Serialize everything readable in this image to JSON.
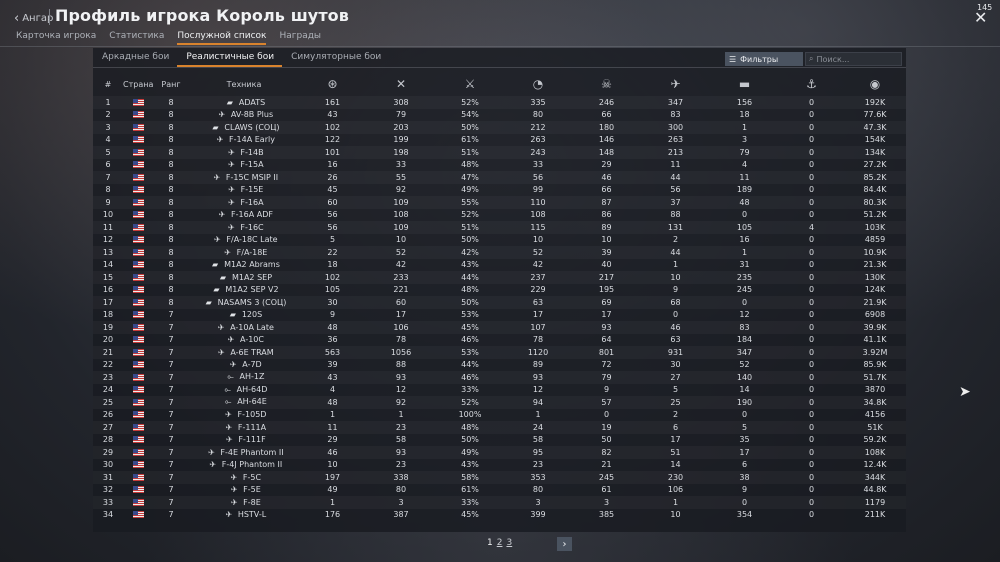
{
  "header": {
    "back_label": "Ангар",
    "title": "Профиль игрока Король шутов",
    "counter": "145",
    "tabs": [
      {
        "label": "Карточка игрока",
        "active": false
      },
      {
        "label": "Статистика",
        "active": false
      },
      {
        "label": "Послужной список",
        "active": true
      },
      {
        "label": "Награды",
        "active": false
      }
    ]
  },
  "modes": [
    {
      "label": "Аркадные бои",
      "active": false
    },
    {
      "label": "Реалистичные бои",
      "active": true
    },
    {
      "label": "Симуляторные бои",
      "active": false
    }
  ],
  "filter_label": "Фильтры",
  "search_placeholder": "Поиск...",
  "columns": {
    "num": "#",
    "country": "Страна",
    "rank": "Ранг",
    "vehicle": "Техника",
    "stat_icons": [
      "ground-kills-icon",
      "air-kills-icon",
      "win-rate-icon",
      "missions-icon",
      "deaths-icon",
      "air-targets-icon",
      "ground-targets-icon",
      "naval-targets-icon",
      "research-points-icon"
    ]
  },
  "accent_color": "#d9832d",
  "rank_color": "#e6c36b",
  "rows": [
    {
      "n": "1",
      "rank": "8",
      "icon": "tank",
      "name": "ADATS",
      "c1": "161",
      "c2": "308",
      "c3": "52%",
      "c4": "335",
      "c5": "246",
      "c6": "347",
      "c7": "156",
      "c8": "0",
      "c9": "192K"
    },
    {
      "n": "2",
      "rank": "8",
      "icon": "jet",
      "name": "AV-8B Plus",
      "c1": "43",
      "c2": "79",
      "c3": "54%",
      "c4": "80",
      "c5": "66",
      "c6": "83",
      "c7": "18",
      "c8": "0",
      "c9": "77.6K"
    },
    {
      "n": "3",
      "rank": "8",
      "icon": "tank",
      "name": "CLAWS (СОЦ)",
      "c1": "102",
      "c2": "203",
      "c3": "50%",
      "c4": "212",
      "c5": "180",
      "c6": "300",
      "c7": "1",
      "c8": "0",
      "c9": "47.3K"
    },
    {
      "n": "4",
      "rank": "8",
      "icon": "jet",
      "name": "F-14A Early",
      "c1": "122",
      "c2": "199",
      "c3": "61%",
      "c4": "263",
      "c5": "146",
      "c6": "263",
      "c7": "3",
      "c8": "0",
      "c9": "154K"
    },
    {
      "n": "5",
      "rank": "8",
      "icon": "jet",
      "name": "F-14B",
      "c1": "101",
      "c2": "198",
      "c3": "51%",
      "c4": "243",
      "c5": "148",
      "c6": "213",
      "c7": "79",
      "c8": "0",
      "c9": "134K"
    },
    {
      "n": "6",
      "rank": "8",
      "icon": "jet",
      "name": "F-15A",
      "c1": "16",
      "c2": "33",
      "c3": "48%",
      "c4": "33",
      "c5": "29",
      "c6": "11",
      "c7": "4",
      "c8": "0",
      "c9": "27.2K"
    },
    {
      "n": "7",
      "rank": "8",
      "icon": "jet",
      "name": "F-15C MSIP II",
      "c1": "26",
      "c2": "55",
      "c3": "47%",
      "c4": "56",
      "c5": "46",
      "c6": "44",
      "c7": "11",
      "c8": "0",
      "c9": "85.2K"
    },
    {
      "n": "8",
      "rank": "8",
      "icon": "jet",
      "name": "F-15E",
      "c1": "45",
      "c2": "92",
      "c3": "49%",
      "c4": "99",
      "c5": "66",
      "c6": "56",
      "c7": "189",
      "c8": "0",
      "c9": "84.4K"
    },
    {
      "n": "9",
      "rank": "8",
      "icon": "jet",
      "name": "F-16A",
      "c1": "60",
      "c2": "109",
      "c3": "55%",
      "c4": "110",
      "c5": "87",
      "c6": "37",
      "c7": "48",
      "c8": "0",
      "c9": "80.3K"
    },
    {
      "n": "10",
      "rank": "8",
      "icon": "jet",
      "name": "F-16A ADF",
      "c1": "56",
      "c2": "108",
      "c3": "52%",
      "c4": "108",
      "c5": "86",
      "c6": "88",
      "c7": "0",
      "c8": "0",
      "c9": "51.2K"
    },
    {
      "n": "11",
      "rank": "8",
      "icon": "jet",
      "name": "F-16C",
      "c1": "56",
      "c2": "109",
      "c3": "51%",
      "c4": "115",
      "c5": "89",
      "c6": "131",
      "c7": "105",
      "c8": "4",
      "c9": "103K"
    },
    {
      "n": "12",
      "rank": "8",
      "icon": "jet",
      "name": "F/A-18C Late",
      "c1": "5",
      "c2": "10",
      "c3": "50%",
      "c4": "10",
      "c5": "10",
      "c6": "2",
      "c7": "16",
      "c8": "0",
      "c9": "4859"
    },
    {
      "n": "13",
      "rank": "8",
      "icon": "jet",
      "name": "F/A-18E",
      "c1": "22",
      "c2": "52",
      "c3": "42%",
      "c4": "52",
      "c5": "39",
      "c6": "44",
      "c7": "1",
      "c8": "0",
      "c9": "10.9K"
    },
    {
      "n": "14",
      "rank": "8",
      "icon": "tank",
      "name": "M1A2 Abrams",
      "c1": "18",
      "c2": "42",
      "c3": "43%",
      "c4": "42",
      "c5": "40",
      "c6": "1",
      "c7": "31",
      "c8": "0",
      "c9": "21.3K"
    },
    {
      "n": "15",
      "rank": "8",
      "icon": "tank",
      "name": "M1A2 SEP",
      "c1": "102",
      "c2": "233",
      "c3": "44%",
      "c4": "237",
      "c5": "217",
      "c6": "10",
      "c7": "235",
      "c8": "0",
      "c9": "130K"
    },
    {
      "n": "16",
      "rank": "8",
      "icon": "tank",
      "name": "M1A2 SEP V2",
      "c1": "105",
      "c2": "221",
      "c3": "48%",
      "c4": "229",
      "c5": "195",
      "c6": "9",
      "c7": "245",
      "c8": "0",
      "c9": "124K"
    },
    {
      "n": "17",
      "rank": "8",
      "icon": "tank",
      "name": "NASAMS 3 (СОЦ)",
      "c1": "30",
      "c2": "60",
      "c3": "50%",
      "c4": "63",
      "c5": "69",
      "c6": "68",
      "c7": "0",
      "c8": "0",
      "c9": "21.9K"
    },
    {
      "n": "18",
      "rank": "7",
      "icon": "tank",
      "name": "120S",
      "c1": "9",
      "c2": "17",
      "c3": "53%",
      "c4": "17",
      "c5": "17",
      "c6": "0",
      "c7": "12",
      "c8": "0",
      "c9": "6908"
    },
    {
      "n": "19",
      "rank": "7",
      "icon": "jet",
      "name": "A-10A Late",
      "c1": "48",
      "c2": "106",
      "c3": "45%",
      "c4": "107",
      "c5": "93",
      "c6": "46",
      "c7": "83",
      "c8": "0",
      "c9": "39.9K"
    },
    {
      "n": "20",
      "rank": "7",
      "icon": "jet",
      "name": "A-10C",
      "c1": "36",
      "c2": "78",
      "c3": "46%",
      "c4": "78",
      "c5": "64",
      "c6": "63",
      "c7": "184",
      "c8": "0",
      "c9": "41.1K"
    },
    {
      "n": "21",
      "rank": "7",
      "icon": "jet",
      "name": "A-6E TRAM",
      "c1": "563",
      "c2": "1056",
      "c3": "53%",
      "c4": "1120",
      "c5": "801",
      "c6": "931",
      "c7": "347",
      "c8": "0",
      "c9": "3.92M"
    },
    {
      "n": "22",
      "rank": "7",
      "icon": "jet",
      "name": "A-7D",
      "c1": "39",
      "c2": "88",
      "c3": "44%",
      "c4": "89",
      "c5": "72",
      "c6": "30",
      "c7": "52",
      "c8": "0",
      "c9": "85.9K"
    },
    {
      "n": "23",
      "rank": "7",
      "icon": "heli",
      "name": "AH-1Z",
      "c1": "43",
      "c2": "93",
      "c3": "46%",
      "c4": "93",
      "c5": "79",
      "c6": "27",
      "c7": "140",
      "c8": "0",
      "c9": "51.7K"
    },
    {
      "n": "24",
      "rank": "7",
      "icon": "heli",
      "name": "AH-64D",
      "c1": "4",
      "c2": "12",
      "c3": "33%",
      "c4": "12",
      "c5": "9",
      "c6": "5",
      "c7": "14",
      "c8": "0",
      "c9": "3870"
    },
    {
      "n": "25",
      "rank": "7",
      "icon": "heli",
      "name": "AH-64E",
      "c1": "48",
      "c2": "92",
      "c3": "52%",
      "c4": "94",
      "c5": "57",
      "c6": "25",
      "c7": "190",
      "c8": "0",
      "c9": "34.8K"
    },
    {
      "n": "26",
      "rank": "7",
      "icon": "jet",
      "name": "F-105D",
      "c1": "1",
      "c2": "1",
      "c3": "100%",
      "c4": "1",
      "c5": "0",
      "c6": "2",
      "c7": "0",
      "c8": "0",
      "c9": "4156"
    },
    {
      "n": "27",
      "rank": "7",
      "icon": "jet",
      "name": "F-111A",
      "c1": "11",
      "c2": "23",
      "c3": "48%",
      "c4": "24",
      "c5": "19",
      "c6": "6",
      "c7": "5",
      "c8": "0",
      "c9": "51K"
    },
    {
      "n": "28",
      "rank": "7",
      "icon": "jet",
      "name": "F-111F",
      "c1": "29",
      "c2": "58",
      "c3": "50%",
      "c4": "58",
      "c5": "50",
      "c6": "17",
      "c7": "35",
      "c8": "0",
      "c9": "59.2K"
    },
    {
      "n": "29",
      "rank": "7",
      "icon": "jet",
      "name": "F-4E Phantom II",
      "c1": "46",
      "c2": "93",
      "c3": "49%",
      "c4": "95",
      "c5": "82",
      "c6": "51",
      "c7": "17",
      "c8": "0",
      "c9": "108K"
    },
    {
      "n": "30",
      "rank": "7",
      "icon": "jet",
      "name": "F-4J Phantom II",
      "c1": "10",
      "c2": "23",
      "c3": "43%",
      "c4": "23",
      "c5": "21",
      "c6": "14",
      "c7": "6",
      "c8": "0",
      "c9": "12.4K"
    },
    {
      "n": "31",
      "rank": "7",
      "icon": "jet",
      "name": "F-5C",
      "c1": "197",
      "c2": "338",
      "c3": "58%",
      "c4": "353",
      "c5": "245",
      "c6": "230",
      "c7": "38",
      "c8": "0",
      "c9": "344K"
    },
    {
      "n": "32",
      "rank": "7",
      "icon": "jet",
      "name": "F-5E",
      "c1": "49",
      "c2": "80",
      "c3": "61%",
      "c4": "80",
      "c5": "61",
      "c6": "106",
      "c7": "9",
      "c8": "0",
      "c9": "44.8K"
    },
    {
      "n": "33",
      "rank": "7",
      "icon": "jet",
      "name": "F-8E",
      "c1": "1",
      "c2": "3",
      "c3": "33%",
      "c4": "3",
      "c5": "3",
      "c6": "1",
      "c7": "0",
      "c8": "0",
      "c9": "1179"
    },
    {
      "n": "34",
      "rank": "7",
      "icon": "jet",
      "name": "HSTV-L",
      "c1": "176",
      "c2": "387",
      "c3": "45%",
      "c4": "399",
      "c5": "385",
      "c6": "10",
      "c7": "354",
      "c8": "0",
      "c9": "211K"
    }
  ],
  "pager": {
    "pages": [
      "1",
      "2",
      "3"
    ],
    "current": "1",
    "next_icon": "chevron-right-icon"
  }
}
